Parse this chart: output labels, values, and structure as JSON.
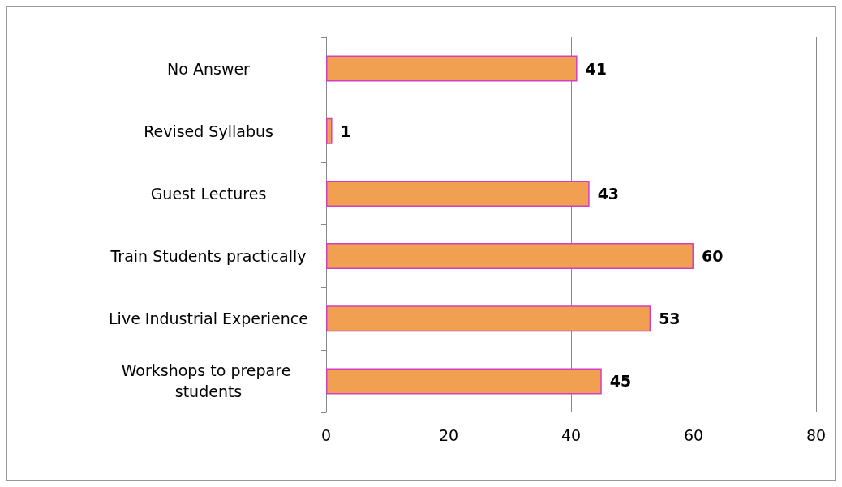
{
  "chart_data": {
    "type": "bar",
    "orientation": "horizontal",
    "categories": [
      "No Answer",
      "Revised Syllabus",
      "Guest Lectures",
      "Train Students practically",
      "Live Industrial Experience",
      "Workshops to prepare students"
    ],
    "values": [
      41,
      1,
      43,
      60,
      53,
      45
    ],
    "color": "#f0a050",
    "xlim": [
      0,
      80
    ],
    "xticks": [
      0,
      20,
      40,
      60,
      80
    ],
    "grid": "x",
    "data_labels": true
  }
}
